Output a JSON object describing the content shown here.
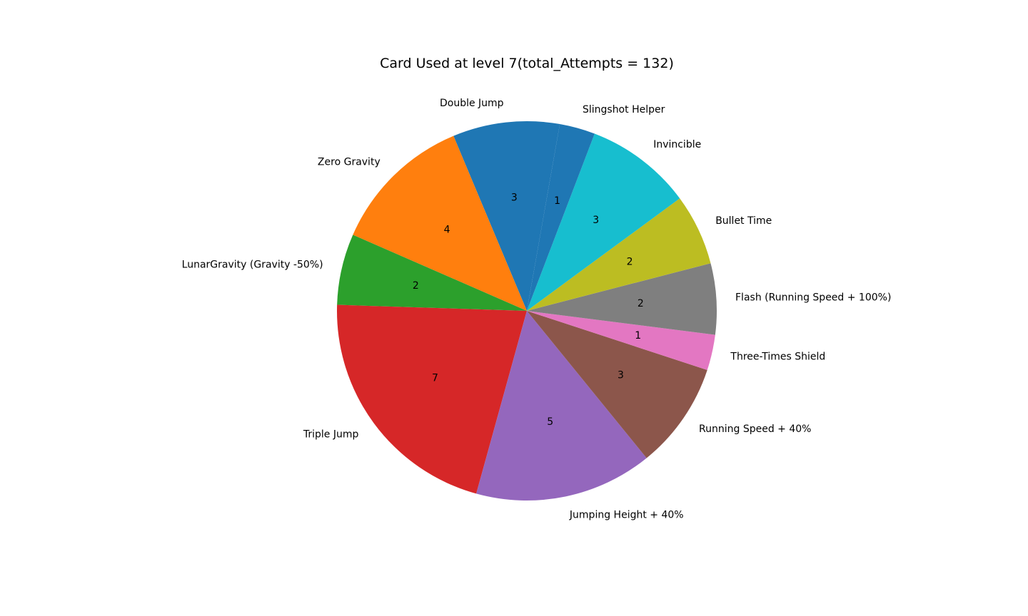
{
  "chart_data": {
    "type": "pie",
    "title": "Card Used at level 7(total_Attempts = 132)",
    "categories": [
      "Double Jump",
      "Zero Gravity",
      "LunarGravity (Gravity -50%)",
      "Triple Jump",
      "Jumping Height + 40%",
      "Running Speed + 40%",
      "Three-Times Shield",
      "Flash (Running Speed + 100%)",
      "Bullet Time",
      "Invincible",
      "Slingshot Helper"
    ],
    "values": [
      3,
      4,
      2,
      7,
      5,
      3,
      1,
      2,
      2,
      3,
      1
    ],
    "value_labels": [
      "3",
      "4",
      "2",
      "7",
      "5",
      "3",
      "1",
      "2",
      "2",
      "3",
      "1"
    ],
    "colors": [
      "#1f77b4",
      "#ff7f0e",
      "#2ca02c",
      "#d62728",
      "#9467bd",
      "#8c564b",
      "#e377c2",
      "#7f7f7f",
      "#bcbd22",
      "#17becf",
      "#1f77b4"
    ],
    "start_angle_deg": 80,
    "direction": "counterclockwise",
    "legend": "none"
  }
}
